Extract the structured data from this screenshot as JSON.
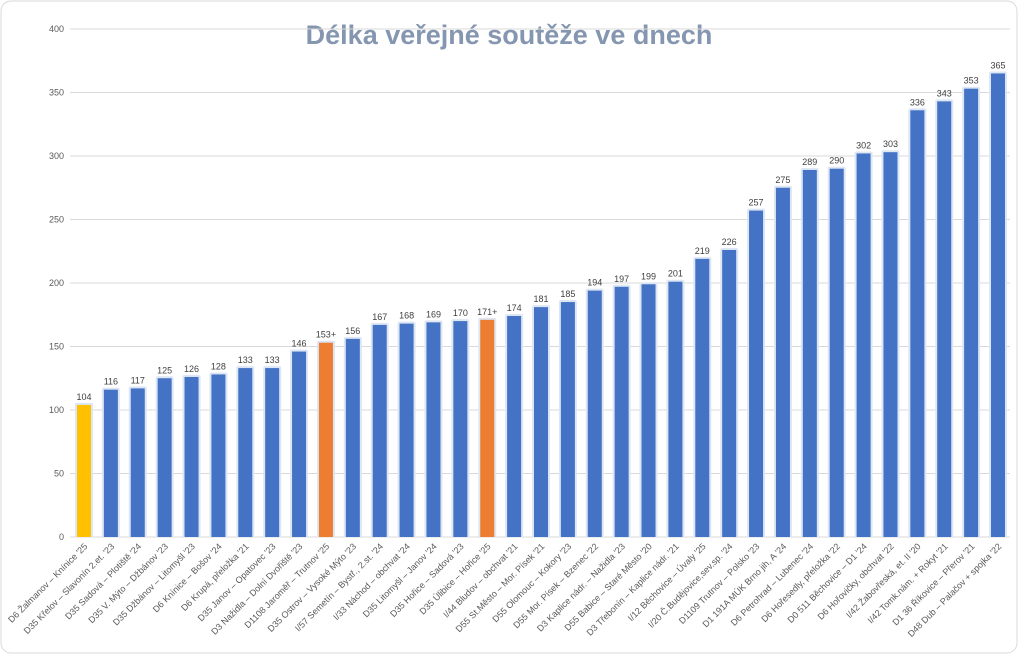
{
  "chart_data": {
    "type": "bar",
    "title": "Délka veřejné soutěže ve dnech",
    "xlabel": "",
    "ylabel": "",
    "ylim": [
      0,
      400
    ],
    "yticks": [
      0,
      50,
      100,
      150,
      200,
      250,
      300,
      350,
      400
    ],
    "grid": true,
    "legend": "none",
    "colors": {
      "default": "#4472C4",
      "highlight": "#ED7D31",
      "first": "#FFC000",
      "title": "#8496B0",
      "grid": "#D9D9D9",
      "text": "#595959"
    },
    "categories": [
      "D6 Žalmanov – Knínice '25",
      "D35 Křelov – Slavonín 2.et. '23",
      "D35 Sadová – Plotiště '24",
      "D35 V. Mýto – Džbánov '23",
      "D35 Džbánov – Litomyšl '23",
      "D6 Knínice – Bošov '24",
      "D6 Krupá, přeložka '21",
      "D35 Janov – Opatovec '23",
      "D3 Nažidla – Dolní Dvořiště '23",
      "D1108 Jaroměř – Trutnov '25",
      "D35 Ostrov – Vysoké Mýto '23",
      "I/57 Semetín – Bystř., 2.st. '24",
      "I/33 Náchod – obchvat '24",
      "D35 Litomyšl – Janov '24",
      "D35 Hořice – Sadová '23",
      "D35 Úlibice – Hořice '25",
      "I/44 Bludov –  obchvat '21",
      "D55 St.Město – Mor. Písek '21",
      "D55 Olomouc – Kokory '23",
      "D55 Mor. Písek – Bzenec '22",
      "D3 Kaplice nádr. – Nažidla '23",
      "D55 Babice – Staré Město '20",
      "D3 Třebonín – Kaplice nádr. '21",
      "I/12 Běchovice – Úvaly '25",
      "I/20 Č.Budějovice,sev.sp. '24",
      "D1109 Trutnov – Polsko '23",
      "D1 191A MÚK Brno jih, A '24",
      "D6 Petrohrad – Lubenec '24",
      "D6 Hořesedly, přeložka '22",
      "D0 511 Běchovice – D1 '24",
      "D6 Hořovičky, obchvat '22",
      "I/42 Žabovřeská, et. II '20",
      "I/42 Tomk.nám. + Rokyt '21",
      "D1 36 Říkovice – Přerov '21",
      "D48 Dub – Palačov + spojka '22"
    ],
    "values": [
      104,
      116,
      117,
      125,
      126,
      128,
      133,
      133,
      146,
      153,
      156,
      167,
      168,
      169,
      170,
      171,
      174,
      181,
      185,
      194,
      197,
      199,
      201,
      219,
      226,
      257,
      275,
      289,
      290,
      302,
      303,
      336,
      343,
      353,
      365
    ],
    "data_labels": [
      "104",
      "116",
      "117",
      "125",
      "126",
      "128",
      "133",
      "133",
      "146",
      "153+",
      "156",
      "167",
      "168",
      "169",
      "170",
      "171+",
      "174",
      "181",
      "185",
      "194",
      "197",
      "199",
      "201",
      "219",
      "226",
      "257",
      "275",
      "289",
      "290",
      "302",
      "303",
      "336",
      "343",
      "353",
      "365"
    ],
    "bar_colors": [
      "first",
      "default",
      "default",
      "default",
      "default",
      "default",
      "default",
      "default",
      "default",
      "highlight",
      "default",
      "default",
      "default",
      "default",
      "default",
      "highlight",
      "default",
      "default",
      "default",
      "default",
      "default",
      "default",
      "default",
      "default",
      "default",
      "default",
      "default",
      "default",
      "default",
      "default",
      "default",
      "default",
      "default",
      "default",
      "default"
    ]
  }
}
